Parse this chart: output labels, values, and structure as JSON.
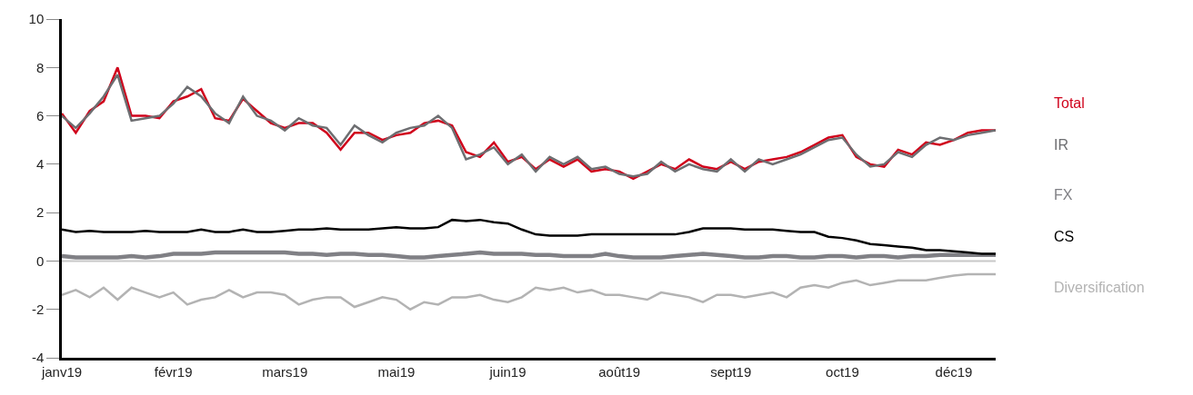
{
  "chart_data": {
    "type": "line",
    "categories": [
      "janv19",
      null,
      null,
      null,
      null,
      null,
      null,
      null,
      "févr19",
      null,
      null,
      null,
      null,
      null,
      null,
      null,
      "mars19",
      null,
      null,
      null,
      null,
      null,
      null,
      null,
      "mai19",
      null,
      null,
      null,
      null,
      null,
      null,
      null,
      "juin19",
      null,
      null,
      null,
      null,
      null,
      null,
      null,
      "août19",
      null,
      null,
      null,
      null,
      null,
      null,
      null,
      "sept19",
      null,
      null,
      null,
      null,
      null,
      null,
      null,
      "oct19",
      null,
      null,
      null,
      null,
      null,
      null,
      null,
      "déc19",
      null,
      null,
      null
    ],
    "series": [
      {
        "name": "Total",
        "color": "#d0021b",
        "values": [
          6.1,
          5.3,
          6.2,
          6.6,
          8.0,
          6.0,
          6.0,
          5.9,
          6.6,
          6.8,
          7.1,
          5.9,
          5.8,
          6.7,
          6.2,
          5.7,
          5.5,
          5.7,
          5.7,
          5.3,
          4.6,
          5.3,
          5.3,
          5.0,
          5.2,
          5.3,
          5.7,
          5.8,
          5.6,
          4.5,
          4.3,
          4.9,
          4.1,
          4.3,
          3.8,
          4.2,
          3.9,
          4.2,
          3.7,
          3.8,
          3.7,
          3.4,
          3.7,
          4.0,
          3.8,
          4.2,
          3.9,
          3.8,
          4.1,
          3.8,
          4.1,
          4.2,
          4.3,
          4.5,
          4.8,
          5.1,
          5.2,
          4.3,
          4.0,
          3.9,
          4.6,
          4.4,
          4.9,
          4.8,
          5.0,
          5.3,
          5.4,
          5.4
        ]
      },
      {
        "name": "IR",
        "color": "#6d6e71",
        "values": [
          6.0,
          5.5,
          6.1,
          6.8,
          7.7,
          5.8,
          5.9,
          6.0,
          6.5,
          7.2,
          6.8,
          6.1,
          5.7,
          6.8,
          6.0,
          5.8,
          5.4,
          5.9,
          5.6,
          5.5,
          4.8,
          5.6,
          5.2,
          4.9,
          5.3,
          5.5,
          5.6,
          6.0,
          5.5,
          4.2,
          4.4,
          4.7,
          4.0,
          4.4,
          3.7,
          4.3,
          4.0,
          4.3,
          3.8,
          3.9,
          3.6,
          3.5,
          3.6,
          4.1,
          3.7,
          4.0,
          3.8,
          3.7,
          4.2,
          3.7,
          4.2,
          4.0,
          4.2,
          4.4,
          4.7,
          5.0,
          5.1,
          4.4,
          3.9,
          4.0,
          4.5,
          4.3,
          4.8,
          5.1,
          5.0,
          5.2,
          5.3,
          5.4
        ]
      },
      {
        "name": "FX",
        "color": "#808085",
        "values": [
          0.2,
          0.15,
          0.15,
          0.15,
          0.15,
          0.2,
          0.15,
          0.2,
          0.3,
          0.3,
          0.3,
          0.35,
          0.35,
          0.35,
          0.35,
          0.35,
          0.35,
          0.3,
          0.3,
          0.25,
          0.3,
          0.3,
          0.25,
          0.25,
          0.2,
          0.15,
          0.15,
          0.2,
          0.25,
          0.3,
          0.35,
          0.3,
          0.3,
          0.3,
          0.25,
          0.25,
          0.2,
          0.2,
          0.2,
          0.3,
          0.2,
          0.15,
          0.15,
          0.15,
          0.2,
          0.25,
          0.3,
          0.25,
          0.2,
          0.15,
          0.15,
          0.2,
          0.2,
          0.15,
          0.15,
          0.2,
          0.2,
          0.15,
          0.2,
          0.2,
          0.15,
          0.2,
          0.2,
          0.25,
          0.25,
          0.25,
          0.25,
          0.25
        ]
      },
      {
        "name": "CS",
        "color": "#000000",
        "values": [
          1.3,
          1.2,
          1.25,
          1.2,
          1.2,
          1.2,
          1.25,
          1.2,
          1.2,
          1.2,
          1.3,
          1.2,
          1.2,
          1.3,
          1.2,
          1.2,
          1.25,
          1.3,
          1.3,
          1.35,
          1.3,
          1.3,
          1.3,
          1.35,
          1.4,
          1.35,
          1.35,
          1.4,
          1.7,
          1.65,
          1.7,
          1.6,
          1.55,
          1.3,
          1.1,
          1.05,
          1.05,
          1.05,
          1.1,
          1.1,
          1.1,
          1.1,
          1.1,
          1.1,
          1.1,
          1.2,
          1.35,
          1.35,
          1.35,
          1.3,
          1.3,
          1.3,
          1.25,
          1.2,
          1.2,
          1.0,
          0.95,
          0.85,
          0.7,
          0.65,
          0.6,
          0.55,
          0.45,
          0.45,
          0.4,
          0.35,
          0.3,
          0.3
        ]
      },
      {
        "name": "Diversification",
        "color": "#b3b3b3",
        "values": [
          -1.4,
          -1.2,
          -1.5,
          -1.1,
          -1.6,
          -1.1,
          -1.3,
          -1.5,
          -1.3,
          -1.8,
          -1.6,
          -1.5,
          -1.2,
          -1.5,
          -1.3,
          -1.3,
          -1.4,
          -1.8,
          -1.6,
          -1.5,
          -1.5,
          -1.9,
          -1.7,
          -1.5,
          -1.6,
          -2.0,
          -1.7,
          -1.8,
          -1.5,
          -1.5,
          -1.4,
          -1.6,
          -1.7,
          -1.5,
          -1.1,
          -1.2,
          -1.1,
          -1.3,
          -1.2,
          -1.4,
          -1.4,
          -1.5,
          -1.6,
          -1.3,
          -1.4,
          -1.5,
          -1.7,
          -1.4,
          -1.4,
          -1.5,
          -1.4,
          -1.3,
          -1.5,
          -1.1,
          -1.0,
          -1.1,
          -0.9,
          -0.8,
          -1.0,
          -0.9,
          -0.8,
          -0.8,
          -0.8,
          -0.7,
          -0.6,
          -0.55,
          -0.55,
          -0.55
        ]
      }
    ],
    "ylim": [
      -4,
      10
    ],
    "yticks": [
      -4,
      -2,
      0,
      2,
      4,
      6,
      8,
      10
    ],
    "ref_lines": [
      {
        "axis": "y",
        "value": 0,
        "color": "#c8c8c8"
      }
    ],
    "grid": false,
    "legend": "right",
    "marker": "none",
    "line_style": "solid"
  }
}
